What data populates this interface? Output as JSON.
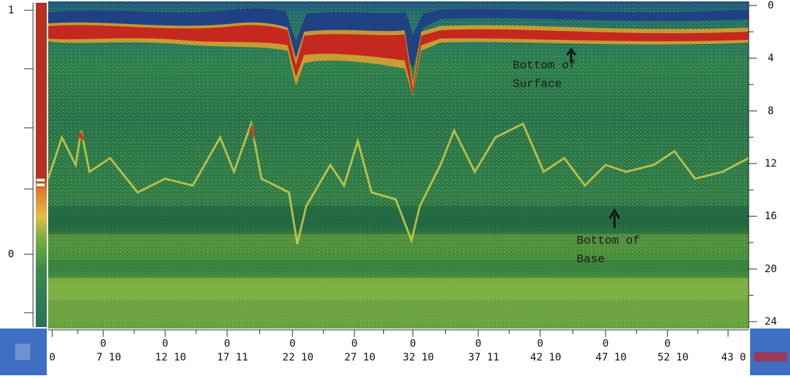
{
  "left_scale": {
    "labels": [
      "1",
      "0"
    ]
  },
  "depth_scale": {
    "labels": [
      "0",
      "4",
      "8",
      "12",
      "16",
      "20",
      "24"
    ]
  },
  "distance_scale": {
    "ticks": [
      {
        "label": "0"
      },
      {
        "marker": "0",
        "label": "7 10"
      },
      {
        "marker": "0",
        "label": "12 10"
      },
      {
        "marker": "0",
        "label": "17 11"
      },
      {
        "marker": "0",
        "label": "22 10"
      },
      {
        "marker": "0",
        "label": "27 10"
      },
      {
        "marker": "0",
        "label": "32 10"
      },
      {
        "marker": "0",
        "label": "37 11"
      },
      {
        "marker": "0",
        "label": "42 10"
      },
      {
        "marker": "0",
        "label": "47 10"
      },
      {
        "marker": "0",
        "label": "52 10"
      },
      {
        "label": "43 0"
      }
    ]
  },
  "annotations": [
    {
      "lines": [
        "Bottom of",
        "Surface"
      ]
    },
    {
      "lines": [
        "Bottom  of",
        "Base"
      ]
    }
  ]
}
